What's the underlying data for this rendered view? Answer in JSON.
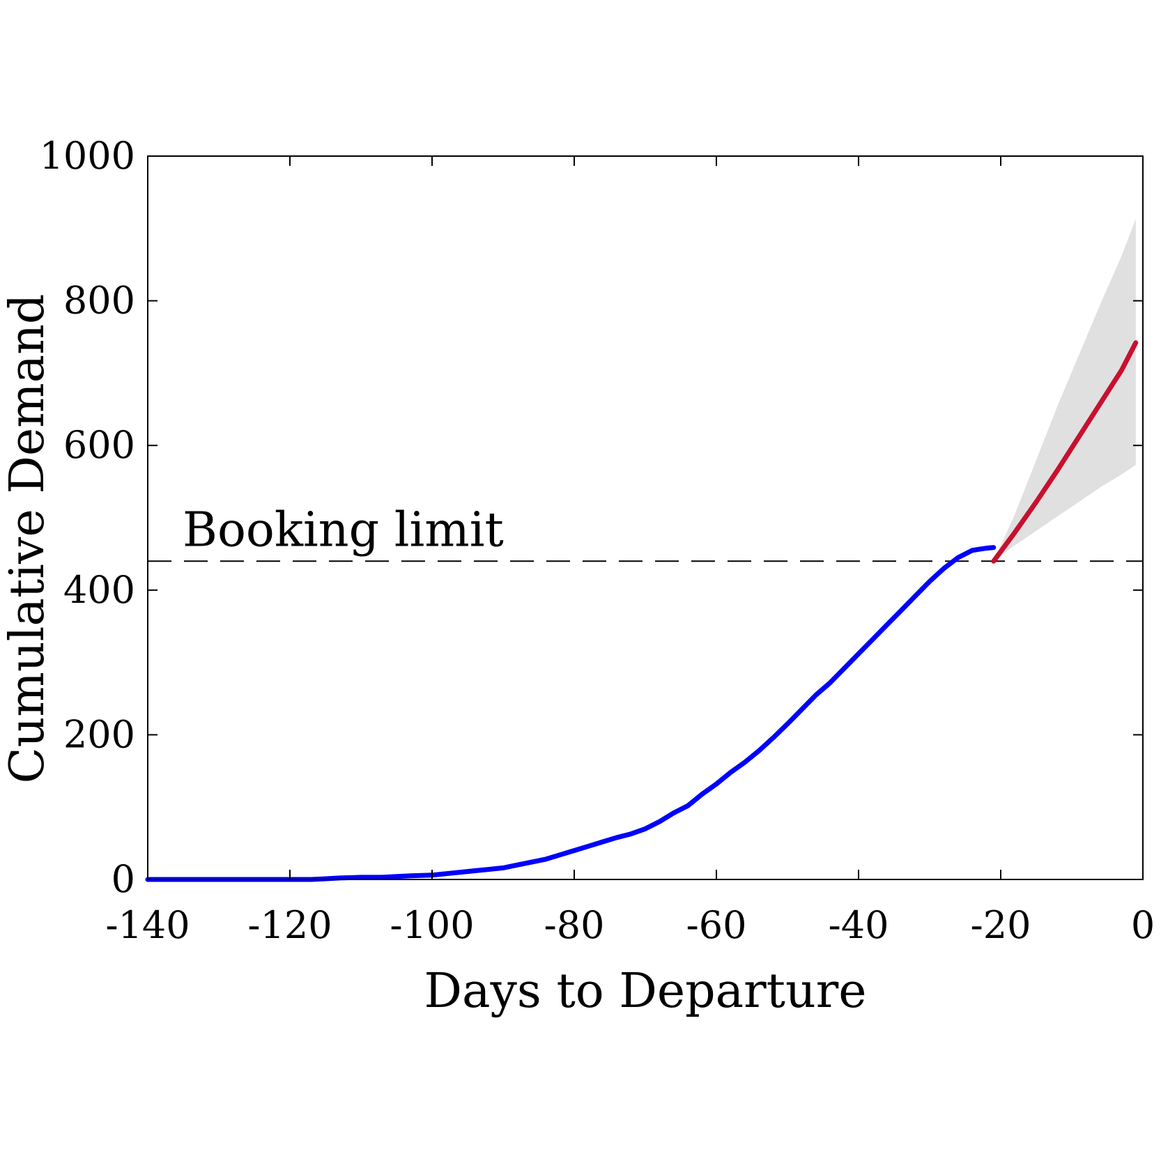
{
  "chart_data": {
    "type": "line",
    "xlabel": "Days to Departure",
    "ylabel": "Cumulative Demand",
    "xlim": [
      -140,
      0
    ],
    "ylim": [
      0,
      1000
    ],
    "xticks": [
      -140,
      -120,
      -100,
      -80,
      -60,
      -40,
      -20,
      0
    ],
    "yticks": [
      0,
      200,
      400,
      600,
      800,
      1000
    ],
    "grid": false,
    "legend": "none",
    "series": [
      {
        "role": "observed",
        "color": "#0000ff",
        "x": [
          -140,
          -135,
          -130,
          -125,
          -120,
          -117,
          -115,
          -113,
          -110,
          -107,
          -105,
          -103,
          -100,
          -98,
          -96,
          -94,
          -92,
          -90,
          -88,
          -86,
          -84,
          -82,
          -80,
          -78,
          -76,
          -74,
          -72,
          -70,
          -68,
          -66,
          -64,
          -62,
          -60,
          -58,
          -56,
          -54,
          -52,
          -50,
          -48,
          -46,
          -44,
          -42,
          -40,
          -38,
          -36,
          -34,
          -32,
          -30,
          -28,
          -26,
          -24,
          -22,
          -21
        ],
        "y": [
          0,
          0,
          0,
          0,
          0,
          0,
          1,
          2,
          3,
          3,
          4,
          5,
          6,
          8,
          10,
          12,
          14,
          16,
          20,
          24,
          28,
          34,
          40,
          46,
          52,
          58,
          63,
          70,
          80,
          92,
          102,
          118,
          132,
          148,
          162,
          178,
          196,
          215,
          235,
          255,
          272,
          292,
          312,
          332,
          352,
          372,
          392,
          412,
          430,
          445,
          455,
          458,
          459
        ]
      },
      {
        "role": "forecast",
        "color": "#c8102e",
        "x": [
          -21,
          -18,
          -15,
          -12,
          -9,
          -6,
          -3,
          -1
        ],
        "y": [
          440,
          480,
          522,
          566,
          612,
          658,
          704,
          742
        ]
      }
    ],
    "band": {
      "color": "#e0e0e0",
      "x": [
        -21,
        -18,
        -15,
        -12,
        -9,
        -6,
        -3,
        -1
      ],
      "lower": [
        440,
        462,
        482,
        502,
        522,
        542,
        560,
        573
      ],
      "upper": [
        440,
        505,
        580,
        655,
        725,
        795,
        862,
        913
      ]
    },
    "reference_line": {
      "y": 440,
      "style": "dashed",
      "label": "Booking limit"
    }
  }
}
